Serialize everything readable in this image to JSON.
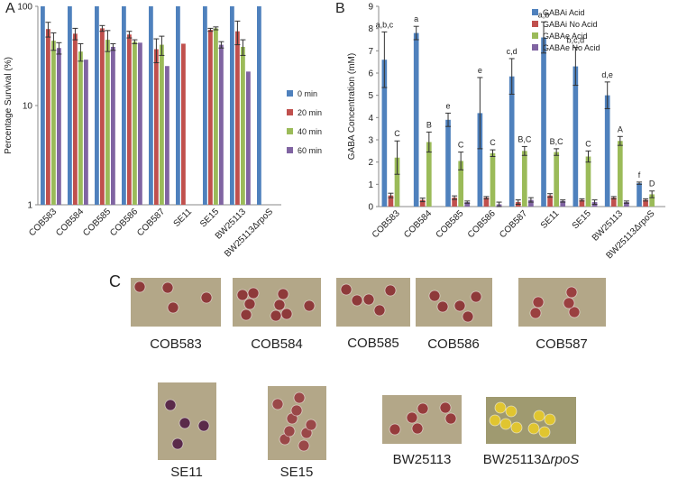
{
  "chart_data": [
    {
      "type": "bar",
      "panel_label": "A",
      "y_label": "Percentage Survival (%)",
      "log_scale": true,
      "categories": [
        "COB583",
        "COB584",
        "COB585",
        "COB586",
        "COB587",
        "SE11",
        "SE15",
        "BW25113",
        "BW25113ΔrpoS"
      ],
      "series": [
        {
          "name": "0 min",
          "color": "#4f81bd",
          "values": [
            100,
            100,
            100,
            100,
            100,
            100,
            100,
            100,
            100
          ],
          "errors": [
            0,
            0,
            0,
            0,
            0,
            0,
            0,
            0,
            0
          ]
        },
        {
          "name": "20 min",
          "color": "#c0504d",
          "values": [
            59,
            53,
            60,
            52,
            37,
            42,
            58,
            56,
            null
          ],
          "errors": [
            10,
            7,
            4,
            4,
            10,
            0,
            2,
            15,
            null
          ]
        },
        {
          "name": "40 min",
          "color": "#9bbb59",
          "values": [
            45,
            35,
            46,
            44,
            41,
            null,
            60,
            39,
            null
          ],
          "errors": [
            9,
            7,
            11,
            2,
            9,
            null,
            2,
            7,
            null
          ]
        },
        {
          "name": "60 min",
          "color": "#8064a2",
          "values": [
            38,
            29,
            39,
            43,
            25,
            null,
            41,
            22,
            null
          ],
          "errors": [
            5,
            0,
            3,
            0,
            0,
            null,
            3,
            0,
            null
          ]
        }
      ],
      "ylim": [
        1,
        100
      ],
      "yticks": [
        1,
        10,
        100
      ],
      "legend": "right"
    },
    {
      "type": "bar",
      "panel_label": "B",
      "y_label": "GABA Concentration (mM)",
      "log_scale": false,
      "categories": [
        "COB583",
        "COB584",
        "COB585",
        "COB586",
        "COB587",
        "SE11",
        "SE15",
        "BW25113",
        "BW25113ΔrpoS"
      ],
      "series": [
        {
          "name": "GABAi Acid",
          "color": "#4f81bd",
          "values": [
            6.6,
            7.8,
            3.9,
            4.2,
            5.85,
            7.6,
            6.3,
            5.0,
            1.05
          ],
          "errors": [
            1.25,
            0.3,
            0.3,
            1.6,
            0.8,
            0.7,
            0.85,
            0.6,
            0.05
          ],
          "letters": [
            "a,b,c",
            "a",
            "e",
            "e",
            "c,d",
            "a,b",
            "b,c,d",
            "d,e",
            "f"
          ]
        },
        {
          "name": "GABAi No Acid",
          "color": "#c0504d",
          "values": [
            0.5,
            0.3,
            0.4,
            0.4,
            0.2,
            0.5,
            0.3,
            0.4,
            0.3
          ],
          "errors": [
            0.1,
            0.08,
            0.08,
            0.05,
            0.1,
            0.08,
            0.05,
            0.05,
            0.05
          ]
        },
        {
          "name": "GABAe Acid",
          "color": "#9bbb59",
          "values": [
            2.2,
            2.9,
            2.05,
            2.4,
            2.5,
            2.45,
            2.25,
            2.95,
            0.55
          ],
          "errors": [
            0.75,
            0.45,
            0.4,
            0.15,
            0.2,
            0.15,
            0.25,
            0.2,
            0.15
          ],
          "letters": [
            "C",
            "B",
            "C",
            "C",
            "B,C",
            "B,C",
            "C",
            "A",
            "D"
          ]
        },
        {
          "name": "GABAe No Acid",
          "color": "#8064a2",
          "values": [
            0,
            0,
            0.2,
            0.1,
            0.3,
            0.25,
            0.2,
            0.2,
            0
          ],
          "errors": [
            0,
            0,
            0.05,
            0.1,
            0.1,
            0.05,
            0.1,
            0.05,
            0
          ]
        }
      ],
      "ylim": [
        0,
        9
      ],
      "yticks": [
        0,
        1,
        2,
        3,
        4,
        5,
        6,
        7,
        8,
        9
      ],
      "legend": "top-right"
    }
  ],
  "panel_c": {
    "label": "C",
    "plates": [
      {
        "text": "COB583"
      },
      {
        "text": "COB584"
      },
      {
        "text": "COB585"
      },
      {
        "text": "COB586"
      },
      {
        "text": "COB587"
      },
      {
        "text": "SE11"
      },
      {
        "text": "SE15"
      },
      {
        "text": "BW25113"
      },
      {
        "text": "BW25113Δ",
        "italic": "rpoS"
      }
    ]
  }
}
